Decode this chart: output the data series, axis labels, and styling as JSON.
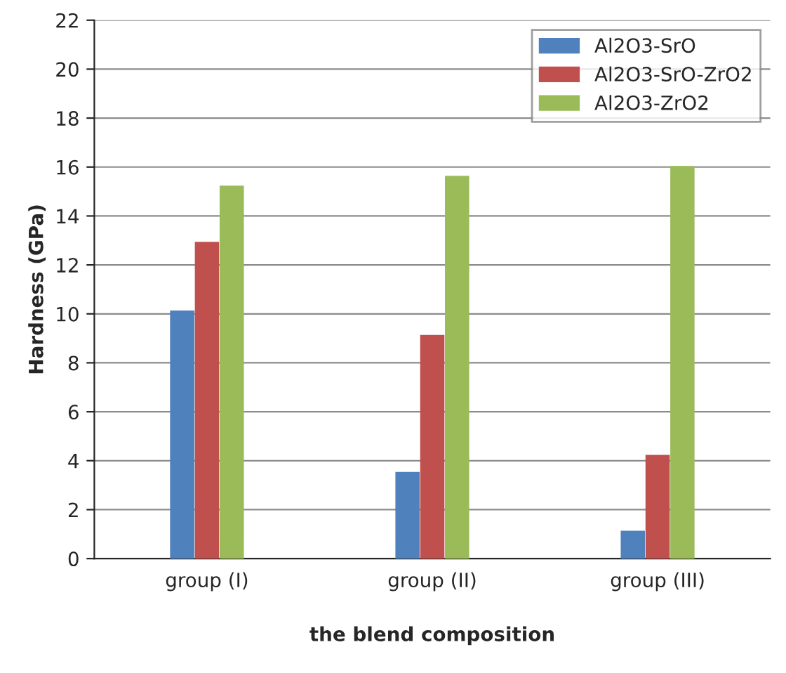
{
  "chart_data": {
    "type": "bar",
    "xlabel": "the blend composition",
    "ylabel": "Hardness (GPa)",
    "categories": [
      "group (I)",
      "group (II)",
      "group (III)"
    ],
    "series": [
      {
        "name": "Al2O3-SrO",
        "color": "#4f81bd",
        "values": [
          10.1,
          3.5,
          1.1
        ]
      },
      {
        "name": "Al2O3-SrO-ZrO2",
        "color": "#c0504d",
        "values": [
          12.9,
          9.1,
          4.2
        ]
      },
      {
        "name": "Al2O3-ZrO2",
        "color": "#9bbb59",
        "values": [
          15.2,
          15.6,
          16.0
        ]
      }
    ],
    "ylim": [
      0,
      22
    ],
    "yticks": [
      0,
      2,
      4,
      6,
      8,
      10,
      12,
      14,
      16,
      18,
      20,
      22
    ],
    "grid": "y",
    "legend": "top right"
  }
}
